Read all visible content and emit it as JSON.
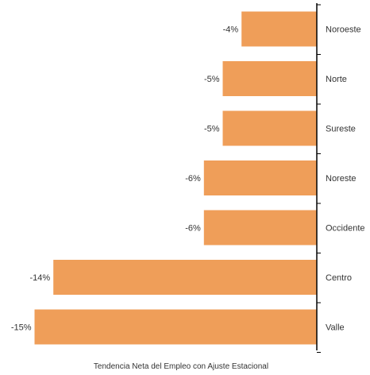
{
  "chart_data": {
    "type": "bar",
    "orientation": "horizontal",
    "categories": [
      "Noroeste",
      "Norte",
      "Sureste",
      "Noreste",
      "Occidente",
      "Centro",
      "Valle"
    ],
    "values": [
      -4,
      -5,
      -5,
      -6,
      -6,
      -14,
      -15
    ],
    "data_labels": [
      "-4%",
      "-5%",
      "-5%",
      "-6%",
      "-6%",
      "-14%",
      "-15%"
    ],
    "xlabel": "Tendencia Neta del Empleo con Ajuste Estacional",
    "ylabel": "",
    "title": "",
    "xlim": [
      -15,
      0
    ],
    "grid": false,
    "bar_color": "#EF9E59",
    "category_axis_side": "right"
  }
}
